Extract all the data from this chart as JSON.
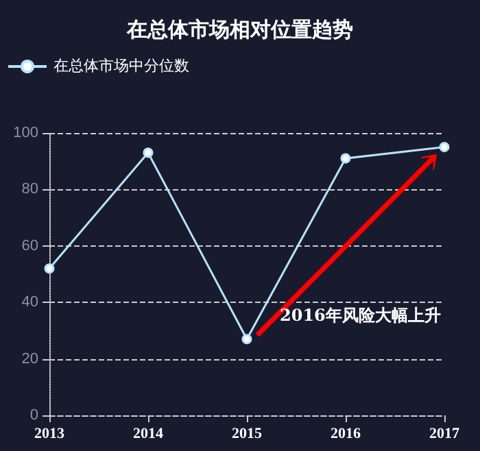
{
  "chart_data": {
    "type": "line",
    "title": "在总体市场相对位置趋势",
    "categories": [
      "2013",
      "2014",
      "2015",
      "2016",
      "2017"
    ],
    "series": [
      {
        "name": "在总体市场中分位数",
        "color": "#b8e2ff",
        "values": [
          52,
          93,
          27,
          91,
          95
        ]
      }
    ],
    "ylim": [
      0,
      100
    ],
    "yticks": [
      0,
      20,
      40,
      60,
      80,
      100
    ],
    "grid": "y",
    "legend": "top left",
    "marker": "circle",
    "line_style": "solid",
    "annotations": [
      "2016年风险大幅上升"
    ]
  }
}
